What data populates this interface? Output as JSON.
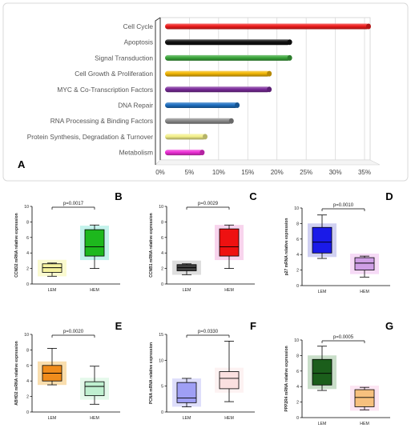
{
  "chart_data": [
    {
      "type": "bar",
      "panel": "A",
      "orientation": "horizontal",
      "categories": [
        "Cell Cycle",
        "Apoptosis",
        "Signal Transduction",
        "Cell Growth & Proliferation",
        "MYC & Co-Transcription Factors",
        "DNA Repair",
        "RNA Processing & Binding Factors",
        "Protein Synthesis, Degradation & Turnover",
        "Metabolism"
      ],
      "values": [
        35,
        21.5,
        21.5,
        18,
        18,
        12.5,
        11.5,
        7,
        6.5
      ],
      "colors": [
        "#ee1c1c",
        "#111111",
        "#3aa63a",
        "#f2b705",
        "#7a2a9a",
        "#1f70c1",
        "#8c8c8c",
        "#f3f08a",
        "#ee2fd6"
      ],
      "xticks": [
        "0%",
        "5%",
        "10%",
        "15%",
        "20%",
        "25%",
        "30%",
        "35%"
      ],
      "xlim": [
        0,
        37
      ],
      "grid": true
    },
    {
      "type": "box",
      "panel": "B",
      "ylabel": "CCND2 mRNA relative expression",
      "p": "p=0.0017",
      "ylim": [
        0,
        10
      ],
      "yticks": [
        "0",
        "2",
        "4",
        "6",
        "8",
        "10"
      ],
      "categories": [
        "LEM",
        "HEM"
      ],
      "boxes": [
        {
          "min": 1.0,
          "q1": 1.5,
          "median": 2.1,
          "q3": 2.6,
          "max": 2.7,
          "color": "#f6f3a0",
          "glow": "#f9f9c8"
        },
        {
          "min": 2.0,
          "q1": 3.6,
          "median": 4.8,
          "q3": 7.0,
          "max": 7.6,
          "color": "#1db81d",
          "glow": "#b8f0e8"
        }
      ]
    },
    {
      "type": "box",
      "panel": "C",
      "ylabel": "CCNB1 mRNA relative expression",
      "p": "p=0.0029",
      "ylim": [
        0,
        10
      ],
      "yticks": [
        "0",
        "2",
        "4",
        "6",
        "8",
        "10"
      ],
      "categories": [
        "LEM",
        "HEM"
      ],
      "boxes": [
        {
          "min": 1.2,
          "q1": 1.7,
          "median": 2.1,
          "q3": 2.5,
          "max": 2.6,
          "color": "#404040",
          "glow": "#d8d8d8"
        },
        {
          "min": 2.0,
          "q1": 3.6,
          "median": 4.8,
          "q3": 7.1,
          "max": 7.6,
          "color": "#ee1111",
          "glow": "#f7cdea"
        }
      ]
    },
    {
      "type": "box",
      "panel": "D",
      "ylabel": "p27 mRNA relative expression",
      "p": "p=0.0010",
      "ylim": [
        0,
        10
      ],
      "yticks": [
        "0",
        "2",
        "4",
        "6",
        "8",
        "10"
      ],
      "categories": [
        "LEM",
        "HEM"
      ],
      "boxes": [
        {
          "min": 3.5,
          "q1": 4.2,
          "median": 5.6,
          "q3": 7.5,
          "max": 9.1,
          "color": "#1a1ae8",
          "glow": "#c8c8f0"
        },
        {
          "min": 1.1,
          "q1": 2.0,
          "median": 2.9,
          "q3": 3.6,
          "max": 3.8,
          "color": "#cf9fe6",
          "glow": "#f4d4f4"
        }
      ]
    },
    {
      "type": "box",
      "panel": "E",
      "ylabel": "ABHD2 mRNA relative expression",
      "p": "p=0.0020",
      "ylim": [
        0,
        10
      ],
      "yticks": [
        "0",
        "2",
        "4",
        "6",
        "8",
        "10"
      ],
      "categories": [
        "LEM",
        "HEM"
      ],
      "boxes": [
        {
          "min": 3.5,
          "q1": 4.0,
          "median": 5.0,
          "q3": 6.0,
          "max": 8.2,
          "color": "#f08c1c",
          "glow": "#f8d8a0"
        },
        {
          "min": 1.0,
          "q1": 2.1,
          "median": 3.3,
          "q3": 3.9,
          "max": 5.9,
          "color": "#bff0d0",
          "glow": "#e0f8e8"
        }
      ]
    },
    {
      "type": "box",
      "panel": "F",
      "ylabel": "PCNA mRNA relative expression",
      "p": "p=0.0330",
      "ylim": [
        0,
        15
      ],
      "yticks": [
        "0",
        "5",
        "10",
        "15"
      ],
      "categories": [
        "LEM",
        "HEM"
      ],
      "boxes": [
        {
          "min": 1.0,
          "q1": 1.8,
          "median": 2.7,
          "q3": 5.7,
          "max": 6.5,
          "color": "#9f9ff5",
          "glow": "#d8d8fa"
        },
        {
          "min": 2.0,
          "q1": 4.5,
          "median": 6.5,
          "q3": 7.8,
          "max": 13.7,
          "color": "#fbe0e0",
          "glow": "#fdf0f0"
        }
      ]
    },
    {
      "type": "box",
      "panel": "G",
      "ylabel": "PPP2R4 mRNA relative expression",
      "p": "p=0.0005",
      "ylim": [
        0,
        10
      ],
      "yticks": [
        "0",
        "2",
        "4",
        "6",
        "8",
        "10"
      ],
      "categories": [
        "LEM",
        "HEM"
      ],
      "boxes": [
        {
          "min": 3.5,
          "q1": 4.2,
          "median": 5.7,
          "q3": 7.5,
          "max": 9.2,
          "color": "#1b5e1b",
          "glow": "#c0d8c0"
        },
        {
          "min": 1.0,
          "q1": 1.4,
          "median": 2.6,
          "q3": 3.6,
          "max": 3.9,
          "color": "#f7c07e",
          "glow": "#fbe0f0"
        }
      ]
    }
  ]
}
